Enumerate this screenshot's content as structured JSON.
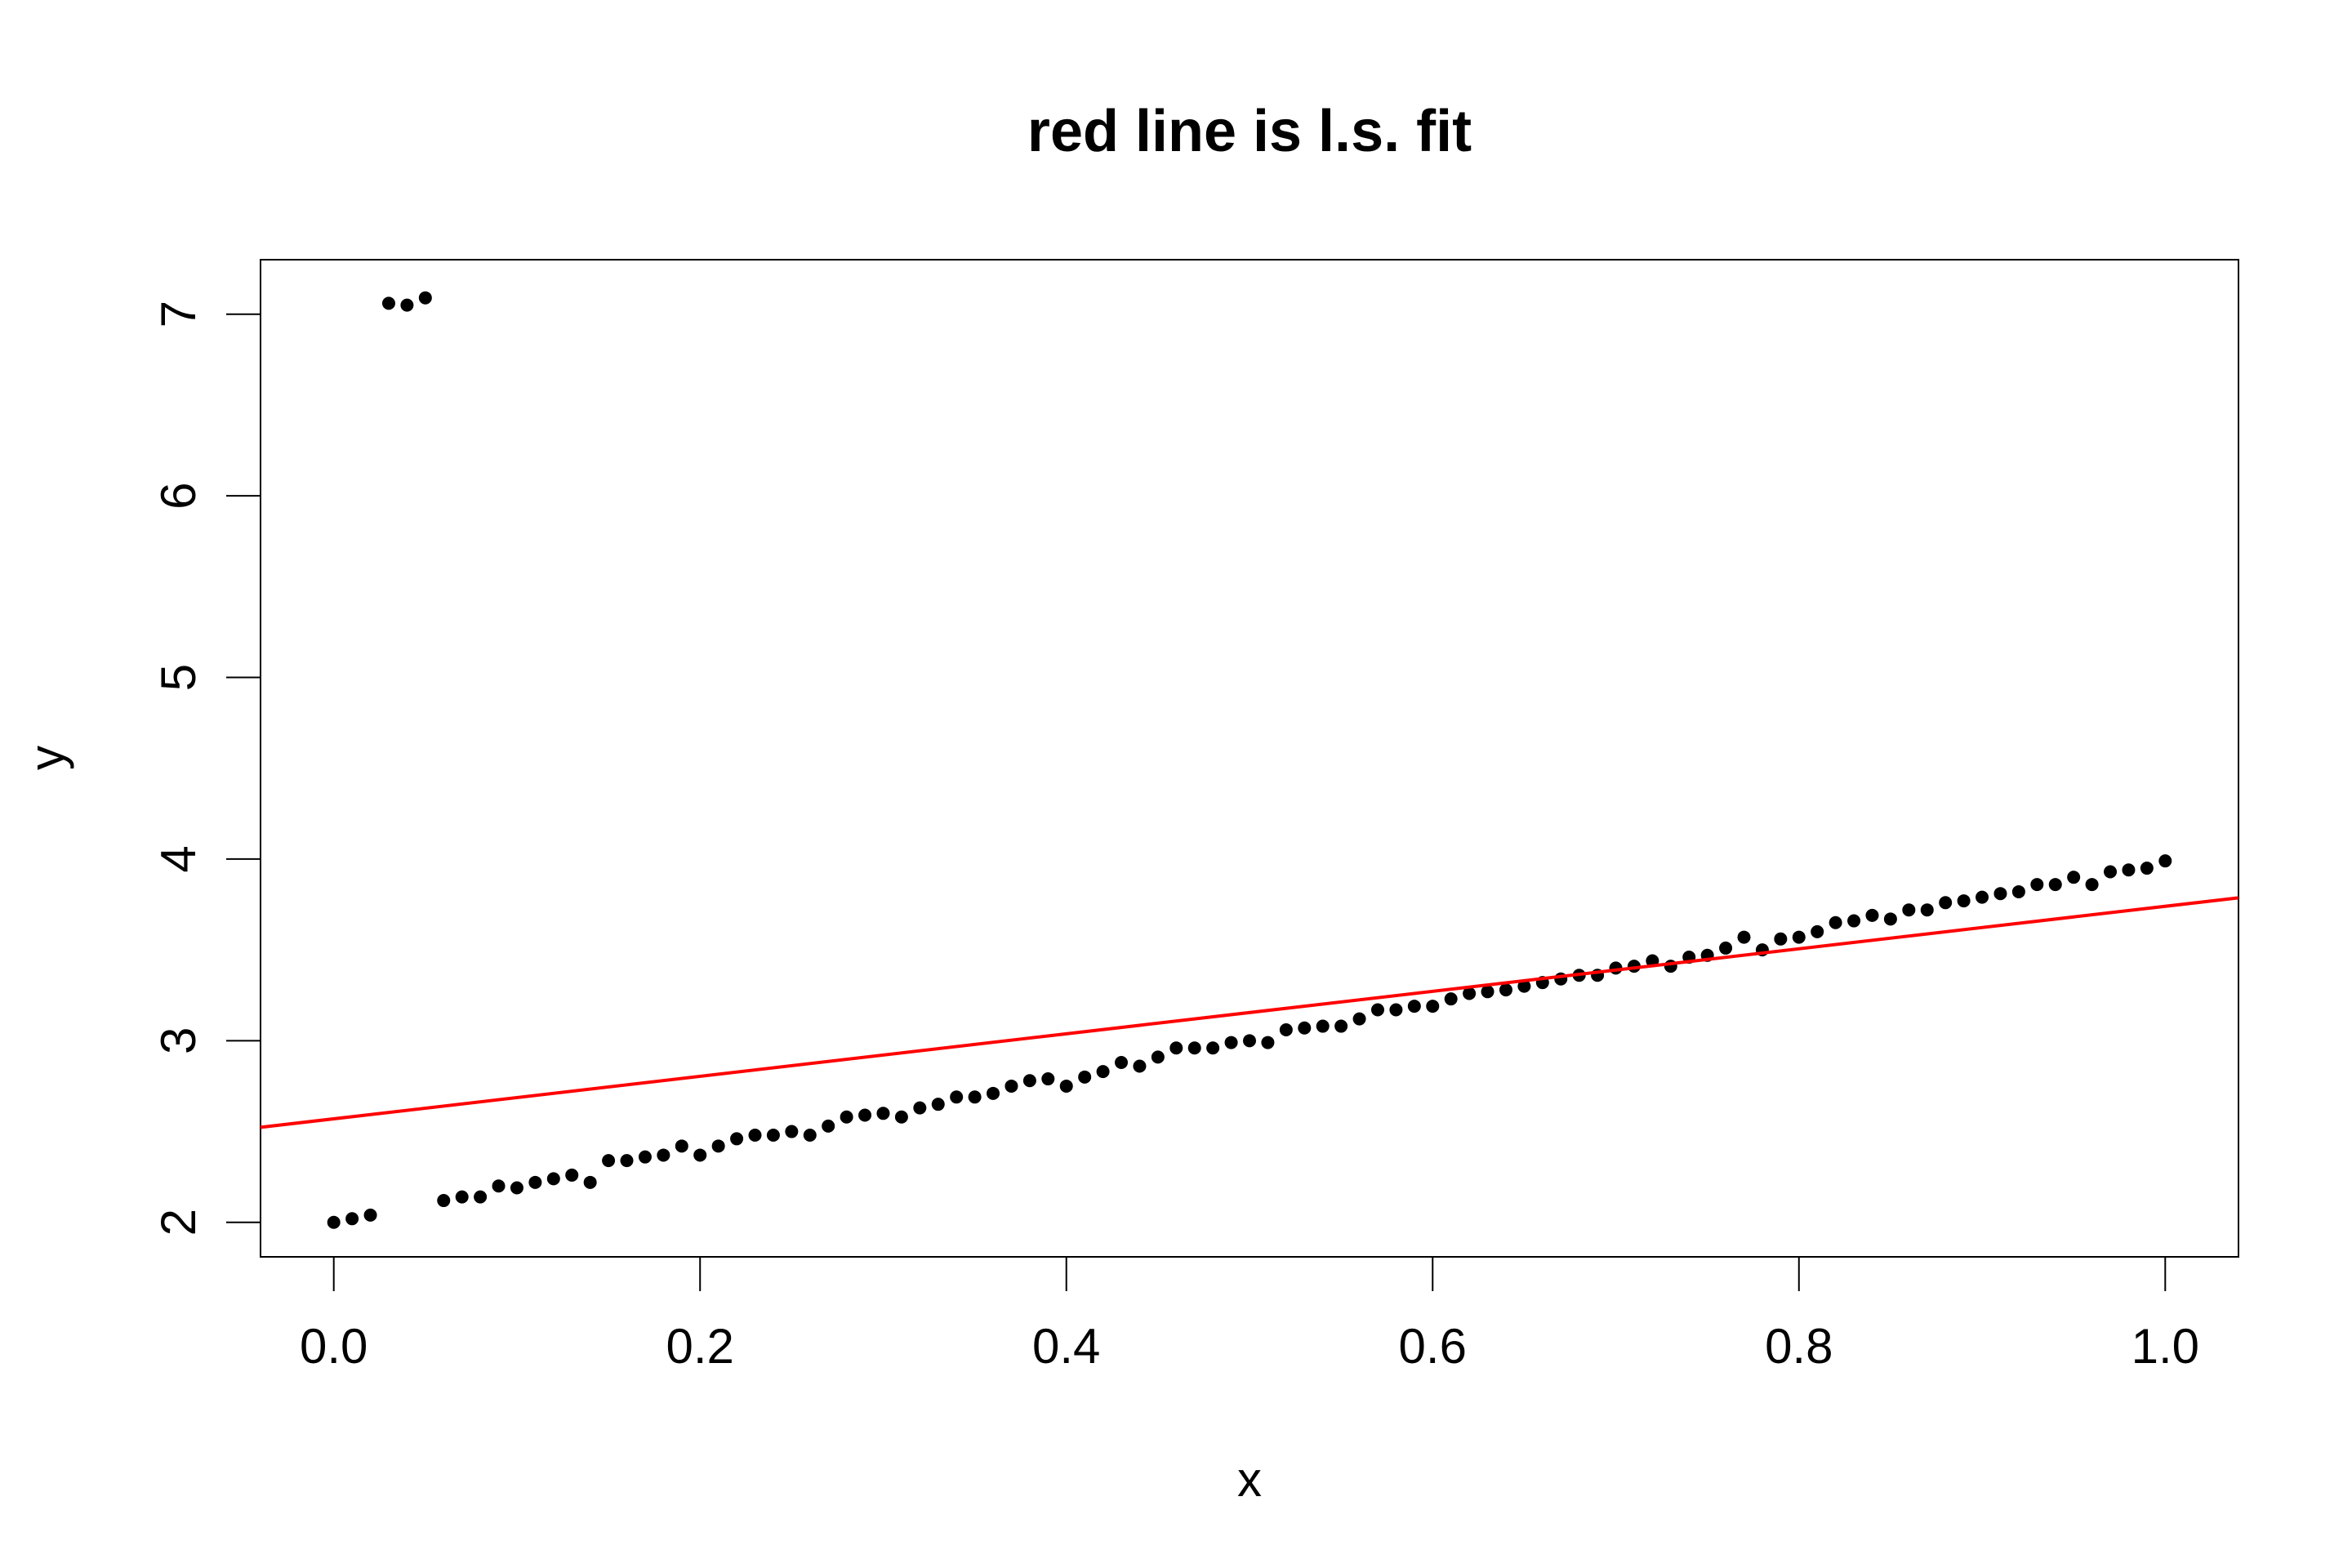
{
  "chart_data": {
    "type": "scatter",
    "title": "red line is l.s. fit",
    "xlabel": "x",
    "ylabel": "y",
    "xlim": [
      -0.04,
      1.04
    ],
    "ylim": [
      1.81,
      7.3
    ],
    "xticks": [
      0.0,
      0.2,
      0.4,
      0.6,
      0.8,
      1.0
    ],
    "xtick_labels": [
      "0.0",
      "0.2",
      "0.4",
      "0.6",
      "0.8",
      "1.0"
    ],
    "yticks": [
      2,
      3,
      4,
      5,
      6,
      7
    ],
    "ytick_labels": [
      "2",
      "3",
      "4",
      "5",
      "6",
      "7"
    ],
    "grid": false,
    "legend": "none",
    "colors": {
      "points": "#000000",
      "fit_line": "#ff0000"
    },
    "series": [
      {
        "x": [
          0.0,
          0.01,
          0.02,
          0.03,
          0.04,
          0.05,
          0.06,
          0.07,
          0.08,
          0.09,
          0.1,
          0.11,
          0.12,
          0.13,
          0.14,
          0.15,
          0.16,
          0.17,
          0.18,
          0.19,
          0.2,
          0.21,
          0.22,
          0.23,
          0.24,
          0.25,
          0.26,
          0.27,
          0.28,
          0.29,
          0.3,
          0.31,
          0.32,
          0.33,
          0.34,
          0.35,
          0.36,
          0.37,
          0.38,
          0.39,
          0.4,
          0.41,
          0.42,
          0.43,
          0.44,
          0.45,
          0.46,
          0.47,
          0.48,
          0.49,
          0.5,
          0.51,
          0.52,
          0.53,
          0.54,
          0.55,
          0.56,
          0.57,
          0.58,
          0.59,
          0.6,
          0.61,
          0.62,
          0.63,
          0.64,
          0.65,
          0.66,
          0.67,
          0.68,
          0.69,
          0.7,
          0.71,
          0.72,
          0.73,
          0.74,
          0.75,
          0.76,
          0.77,
          0.78,
          0.79,
          0.8,
          0.81,
          0.82,
          0.83,
          0.84,
          0.85,
          0.86,
          0.87,
          0.88,
          0.89,
          0.9,
          0.91,
          0.92,
          0.93,
          0.94,
          0.95,
          0.96,
          0.97,
          0.98,
          0.99,
          1.0
        ],
        "y": [
          2.0,
          2.02,
          2.04,
          7.06,
          7.05,
          7.09,
          2.12,
          2.14,
          2.14,
          2.2,
          2.19,
          2.22,
          2.24,
          2.26,
          2.22,
          2.34,
          2.34,
          2.36,
          2.37,
          2.42,
          2.37,
          2.42,
          2.46,
          2.48,
          2.48,
          2.5,
          2.48,
          2.53,
          2.58,
          2.59,
          2.6,
          2.58,
          2.63,
          2.65,
          2.69,
          2.69,
          2.71,
          2.75,
          2.78,
          2.79,
          2.75,
          2.8,
          2.83,
          2.88,
          2.86,
          2.91,
          2.96,
          2.96,
          2.96,
          2.99,
          3.0,
          2.99,
          3.06,
          3.07,
          3.08,
          3.08,
          3.12,
          3.17,
          3.17,
          3.19,
          3.19,
          3.23,
          3.26,
          3.27,
          3.28,
          3.3,
          3.32,
          3.34,
          3.36,
          3.36,
          3.4,
          3.41,
          3.44,
          3.41,
          3.46,
          3.47,
          3.51,
          3.57,
          3.5,
          3.56,
          3.57,
          3.6,
          3.65,
          3.66,
          3.69,
          3.67,
          3.72,
          3.72,
          3.76,
          3.77,
          3.79,
          3.81,
          3.82,
          3.86,
          3.86,
          3.9,
          3.86,
          3.93,
          3.94,
          3.95,
          3.99
        ]
      }
    ],
    "fit_line": {
      "intercept": 2.57,
      "slope": 1.17
    }
  }
}
